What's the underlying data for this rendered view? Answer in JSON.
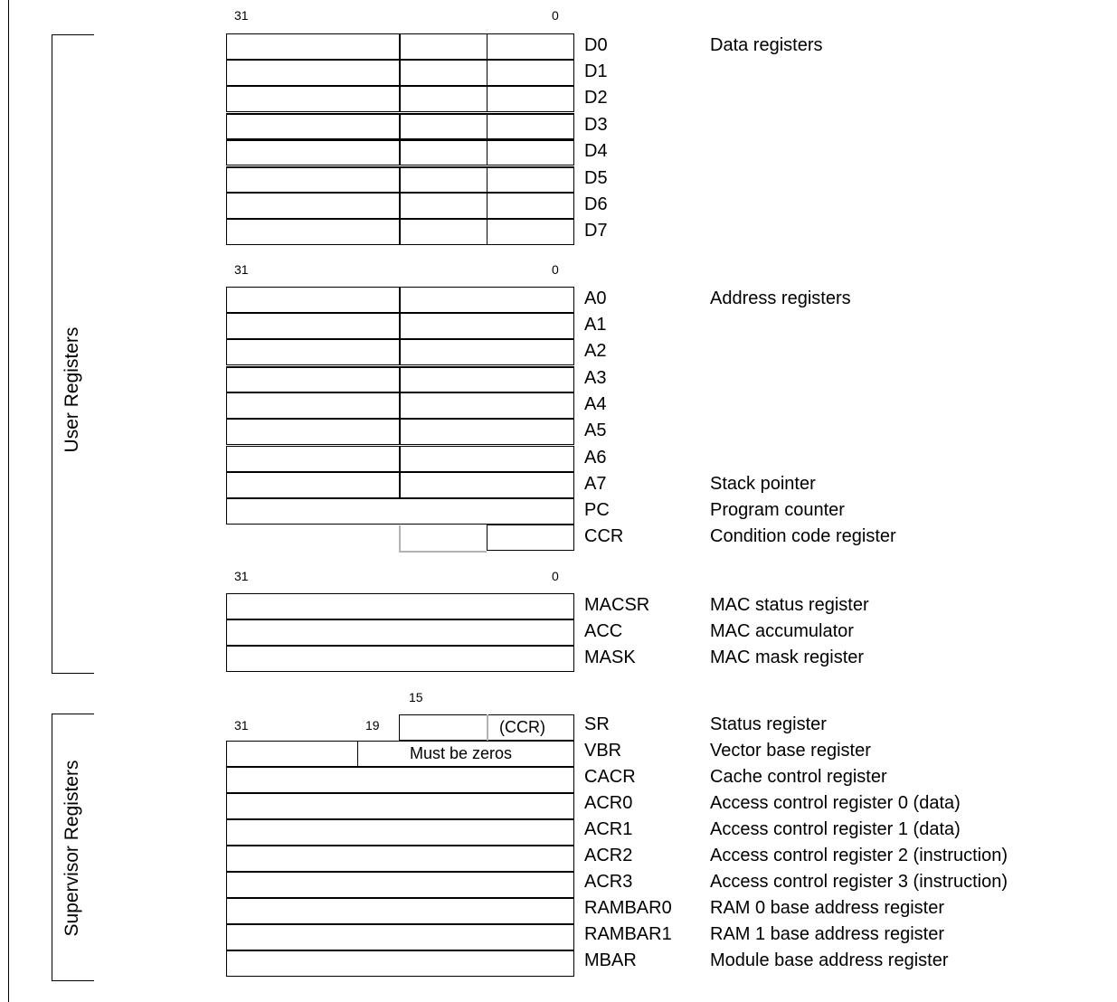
{
  "sections": {
    "user_label": "User Registers",
    "supervisor_label": "Supervisor Registers"
  },
  "bit_numbers": {
    "data_high": "31",
    "data_low": "0",
    "addr_high": "31",
    "addr_low": "0",
    "mac_high": "31",
    "mac_low": "0",
    "sr_bit15": "15",
    "sr_high": "31",
    "sr_bit19": "19"
  },
  "data_registers": [
    {
      "name": "D0",
      "desc": "Data registers"
    },
    {
      "name": "D1",
      "desc": ""
    },
    {
      "name": "D2",
      "desc": ""
    },
    {
      "name": "D3",
      "desc": ""
    },
    {
      "name": "D4",
      "desc": ""
    },
    {
      "name": "D5",
      "desc": ""
    },
    {
      "name": "D6",
      "desc": ""
    },
    {
      "name": "D7",
      "desc": ""
    }
  ],
  "address_registers": [
    {
      "name": "A0",
      "desc": "Address registers"
    },
    {
      "name": "A1",
      "desc": ""
    },
    {
      "name": "A2",
      "desc": ""
    },
    {
      "name": "A3",
      "desc": ""
    },
    {
      "name": "A4",
      "desc": ""
    },
    {
      "name": "A5",
      "desc": ""
    },
    {
      "name": "A6",
      "desc": ""
    },
    {
      "name": "A7",
      "desc": "Stack pointer"
    },
    {
      "name": "PC",
      "desc": "Program counter"
    },
    {
      "name": "CCR",
      "desc": "Condition code register"
    }
  ],
  "mac_registers": [
    {
      "name": "MACSR",
      "desc": "MAC status register"
    },
    {
      "name": "ACC",
      "desc": "MAC accumulator"
    },
    {
      "name": "MASK",
      "desc": "MAC mask register"
    }
  ],
  "supervisor_registers": [
    {
      "name": "SR",
      "desc": "Status register"
    },
    {
      "name": "VBR",
      "desc": "Vector base register"
    },
    {
      "name": "CACR",
      "desc": "Cache control register"
    },
    {
      "name": "ACR0",
      "desc": "Access control register 0 (data)"
    },
    {
      "name": "ACR1",
      "desc": "Access control register 1 (data)"
    },
    {
      "name": "ACR2",
      "desc": "Access control register 2 (instruction)"
    },
    {
      "name": "ACR3",
      "desc": "Access control register 3 (instruction)"
    },
    {
      "name": "RAMBAR0",
      "desc": "RAM 0 base address register"
    },
    {
      "name": "RAMBAR1",
      "desc": "RAM 1 base address register"
    },
    {
      "name": "MBAR",
      "desc": "Module base address register"
    }
  ],
  "box_text": {
    "sr_ccr": "(CCR)",
    "vbr_zeros": "Must be zeros"
  }
}
